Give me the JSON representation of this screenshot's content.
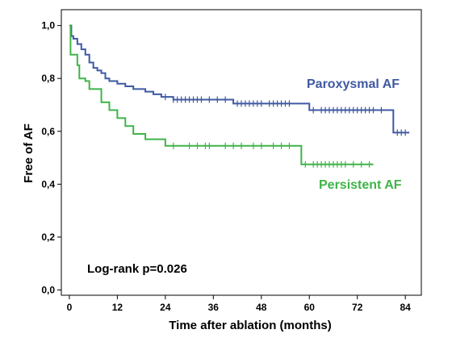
{
  "chart_data": {
    "type": "line",
    "title": "",
    "xlabel": "Time after ablation (months)",
    "ylabel": "Free of AF",
    "xlim": [
      -2,
      88
    ],
    "ylim": [
      -0.02,
      1.06
    ],
    "x_ticks": [
      0,
      12,
      24,
      36,
      48,
      60,
      72,
      84
    ],
    "y_ticks": [
      0.0,
      0.2,
      0.4,
      0.6,
      0.8,
      1.0
    ],
    "y_tick_labels": [
      "0,0",
      "0,2",
      "0,4",
      "0,6",
      "0,8",
      "1,0"
    ],
    "grid": false,
    "annotation": "Log-rank p=0.026",
    "series": [
      {
        "name": "Paroxysmal AF",
        "color": "#3f59a3",
        "step_points": [
          [
            0,
            1.0
          ],
          [
            0.5,
            0.96
          ],
          [
            1,
            0.95
          ],
          [
            2,
            0.93
          ],
          [
            3,
            0.91
          ],
          [
            4,
            0.89
          ],
          [
            5,
            0.86
          ],
          [
            6,
            0.84
          ],
          [
            7,
            0.83
          ],
          [
            8,
            0.82
          ],
          [
            9,
            0.8
          ],
          [
            10,
            0.79
          ],
          [
            12,
            0.78
          ],
          [
            14,
            0.77
          ],
          [
            16,
            0.76
          ],
          [
            19,
            0.75
          ],
          [
            21,
            0.74
          ],
          [
            23,
            0.73
          ],
          [
            26,
            0.72
          ],
          [
            40,
            0.72
          ],
          [
            41,
            0.705
          ],
          [
            59,
            0.705
          ],
          [
            60,
            0.68
          ],
          [
            80,
            0.68
          ],
          [
            81,
            0.595
          ],
          [
            85,
            0.595
          ]
        ],
        "censored": [
          24,
          26,
          27,
          28,
          29,
          30,
          31,
          32,
          33,
          35,
          37,
          39,
          42,
          43,
          44,
          45,
          46,
          47,
          48,
          50,
          51,
          52,
          53,
          54,
          55,
          61,
          63,
          64,
          65,
          66,
          67,
          68,
          69,
          70,
          71,
          72,
          73,
          74,
          75,
          76,
          78,
          82,
          83,
          84
        ]
      },
      {
        "name": "Persistent AF",
        "color": "#3fb449",
        "step_points": [
          [
            0,
            1.0
          ],
          [
            0.3,
            0.89
          ],
          [
            2,
            0.85
          ],
          [
            2.5,
            0.8
          ],
          [
            4,
            0.79
          ],
          [
            5,
            0.76
          ],
          [
            8,
            0.71
          ],
          [
            10,
            0.68
          ],
          [
            12,
            0.65
          ],
          [
            14,
            0.62
          ],
          [
            16,
            0.59
          ],
          [
            19,
            0.57
          ],
          [
            24,
            0.545
          ],
          [
            57,
            0.545
          ],
          [
            58,
            0.475
          ],
          [
            76,
            0.475
          ]
        ],
        "censored": [
          26,
          30,
          32,
          34,
          35,
          39,
          41,
          43,
          46,
          48,
          51,
          53,
          55,
          59,
          61,
          62,
          63,
          64,
          65,
          66,
          67,
          68,
          69,
          71,
          73,
          75
        ]
      }
    ]
  }
}
